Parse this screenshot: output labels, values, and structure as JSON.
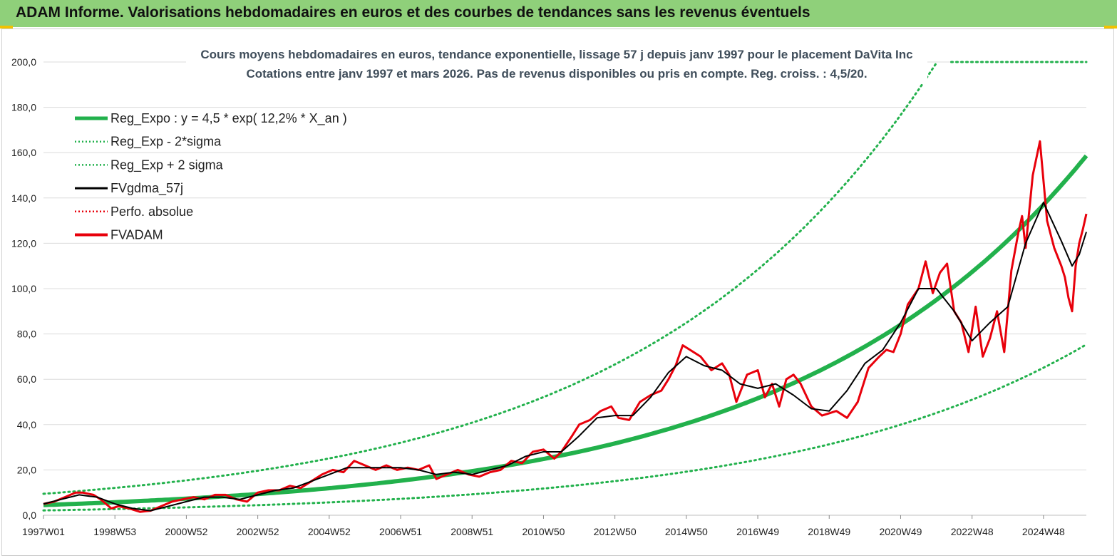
{
  "header": {
    "title": "ADAM Informe. Valorisations hebdomadaires en euros et des courbes de tendances sans les revenus éventuels"
  },
  "chart_data": {
    "type": "line",
    "title": "Cours moyens  hebdomadaires en euros, tendance exponentielle, lissage 57 j depuis janv 1997 pour le placement DaVita Inc",
    "subtitle": "Cotations entre janv 1997 et mars 2026. Pas de revenus disponibles ou pris en compte. Reg. croiss. : 4,5/20.",
    "xlabel": "",
    "ylabel": "",
    "x_tick_labels": [
      "1997W01",
      "1998W53",
      "2000W52",
      "2002W52",
      "2004W52",
      "2006W51",
      "2008W51",
      "2010W50",
      "2012W50",
      "2014W50",
      "2016W49",
      "2018W49",
      "2020W49",
      "2022W48",
      "2024W48"
    ],
    "x_ticks_years": [
      1997.0,
      1999.0,
      2001.0,
      2003.0,
      2005.0,
      2007.0,
      2009.0,
      2011.0,
      2013.0,
      2015.0,
      2017.0,
      2019.0,
      2021.0,
      2023.0,
      2025.0
    ],
    "xlim": [
      1997.0,
      2026.2
    ],
    "y_tick_labels": [
      "0,0",
      "20,0",
      "40,0",
      "60,0",
      "80,0",
      "100,0",
      "120,0",
      "140,0",
      "160,0",
      "180,0",
      "200,0"
    ],
    "y_ticks": [
      0,
      20,
      40,
      60,
      80,
      100,
      120,
      140,
      160,
      180,
      200
    ],
    "ylim": [
      0,
      200
    ],
    "grid": true,
    "legend_position": "top-left",
    "regression": {
      "a": 4.5,
      "rate": 0.122,
      "low_factor": 0.475,
      "high_factor": 2.1,
      "start_year": 1997.0
    },
    "series": [
      {
        "name": "Reg_Expo : y = 4,5 * exp( 12,2% *  X_an )",
        "color": "#22b14c",
        "style": "solid-thick",
        "kind": "regression"
      },
      {
        "name": "Reg_Exp - 2*sigma",
        "color": "#22b14c",
        "style": "dotted",
        "kind": "regression-low"
      },
      {
        "name": "Reg_Exp + 2 sigma",
        "color": "#22b14c",
        "style": "dotted",
        "kind": "regression-high",
        "capped_at": 200
      },
      {
        "name": "FVgdma_57j",
        "color": "#000000",
        "style": "solid",
        "kind": "smoothed"
      },
      {
        "name": "Perfo. absolue",
        "color": "#e8000b",
        "style": "dotted",
        "kind": "absolute"
      },
      {
        "name": "FVADAM",
        "color": "#e8000b",
        "style": "solid-thick",
        "kind": "price",
        "x": [
          1997.0,
          1997.3,
          1997.6,
          1997.9,
          1998.1,
          1998.4,
          1998.6,
          1998.9,
          1999.1,
          1999.4,
          1999.7,
          2000.0,
          2000.3,
          2000.6,
          2000.9,
          2001.2,
          2001.5,
          2001.8,
          2002.1,
          2002.4,
          2002.7,
          2003.0,
          2003.3,
          2003.6,
          2003.9,
          2004.2,
          2004.5,
          2004.8,
          2005.1,
          2005.4,
          2005.7,
          2006.0,
          2006.3,
          2006.6,
          2006.9,
          2007.2,
          2007.5,
          2007.8,
          2008.0,
          2008.3,
          2008.6,
          2008.9,
          2009.2,
          2009.5,
          2009.8,
          2010.1,
          2010.4,
          2010.7,
          2011.0,
          2011.3,
          2011.5,
          2011.8,
          2012.0,
          2012.3,
          2012.6,
          2012.9,
          2013.1,
          2013.4,
          2013.7,
          2014.0,
          2014.3,
          2014.5,
          2014.7,
          2014.9,
          2015.1,
          2015.4,
          2015.7,
          2016.0,
          2016.2,
          2016.4,
          2016.7,
          2017.0,
          2017.2,
          2017.4,
          2017.6,
          2017.8,
          2018.0,
          2018.2,
          2018.5,
          2018.8,
          2019.0,
          2019.2,
          2019.5,
          2019.8,
          2020.1,
          2020.4,
          2020.6,
          2020.8,
          2021.0,
          2021.2,
          2021.5,
          2021.7,
          2021.9,
          2022.1,
          2022.3,
          2022.5,
          2022.7,
          2022.9,
          2023.1,
          2023.3,
          2023.5,
          2023.7,
          2023.9,
          2024.1,
          2024.3,
          2024.4,
          2024.5,
          2024.7,
          2024.9,
          2025.1,
          2025.3,
          2025.5,
          2025.6,
          2025.7,
          2025.8,
          2025.9,
          2026.0,
          2026.1,
          2026.2
        ],
        "values": [
          5,
          6,
          8,
          10,
          10,
          9,
          7,
          3,
          4,
          3,
          1.5,
          2,
          4,
          6,
          7,
          8,
          7,
          9,
          9,
          7,
          6,
          10,
          11,
          11,
          13,
          12,
          15,
          18,
          20,
          19,
          24,
          22,
          20,
          22,
          20,
          21,
          20,
          22,
          16,
          18,
          20,
          18,
          17,
          19,
          20,
          24,
          23,
          28,
          29,
          25,
          28,
          35,
          40,
          42,
          46,
          48,
          43,
          42,
          50,
          53,
          55,
          60,
          66,
          75,
          73,
          70,
          64,
          67,
          62,
          50,
          62,
          64,
          52,
          58,
          48,
          60,
          62,
          58,
          48,
          44,
          45,
          46,
          43,
          50,
          65,
          70,
          73,
          72,
          80,
          93,
          100,
          112,
          98,
          107,
          111,
          90,
          85,
          72,
          92,
          70,
          78,
          90,
          72,
          108,
          125,
          132,
          118,
          150,
          165,
          130,
          118,
          110,
          105,
          96,
          90,
          110,
          120,
          126,
          133
        ]
      },
      {
        "name": "FVgdma_57j",
        "kind": "smoothed-values",
        "x": [
          1997.0,
          1997.5,
          1998.0,
          1998.5,
          1999.0,
          1999.5,
          2000.0,
          2000.5,
          2001.0,
          2001.5,
          2002.0,
          2002.5,
          2003.0,
          2003.5,
          2004.0,
          2004.5,
          2005.0,
          2005.5,
          2006.0,
          2006.5,
          2007.0,
          2007.5,
          2008.0,
          2008.5,
          2009.0,
          2009.5,
          2010.0,
          2010.5,
          2011.0,
          2011.5,
          2012.0,
          2012.5,
          2013.0,
          2013.5,
          2014.0,
          2014.5,
          2015.0,
          2015.5,
          2016.0,
          2016.5,
          2017.0,
          2017.5,
          2018.0,
          2018.5,
          2019.0,
          2019.5,
          2020.0,
          2020.5,
          2021.0,
          2021.5,
          2022.0,
          2022.5,
          2023.0,
          2023.5,
          2024.0,
          2024.5,
          2025.0,
          2025.5,
          2025.8,
          2026.0,
          2026.2
        ],
        "values": [
          5,
          7,
          9,
          8,
          5,
          3,
          2,
          4,
          6,
          8,
          8,
          7,
          9,
          11,
          12,
          15,
          18,
          21,
          21,
          21,
          21,
          20,
          18,
          19,
          18,
          20,
          22,
          26,
          28,
          28,
          35,
          43,
          44,
          44,
          52,
          63,
          70,
          66,
          64,
          58,
          56,
          58,
          53,
          47,
          46,
          55,
          67,
          73,
          85,
          100,
          100,
          90,
          77,
          85,
          92,
          120,
          138,
          121,
          110,
          115,
          125
        ]
      }
    ]
  }
}
